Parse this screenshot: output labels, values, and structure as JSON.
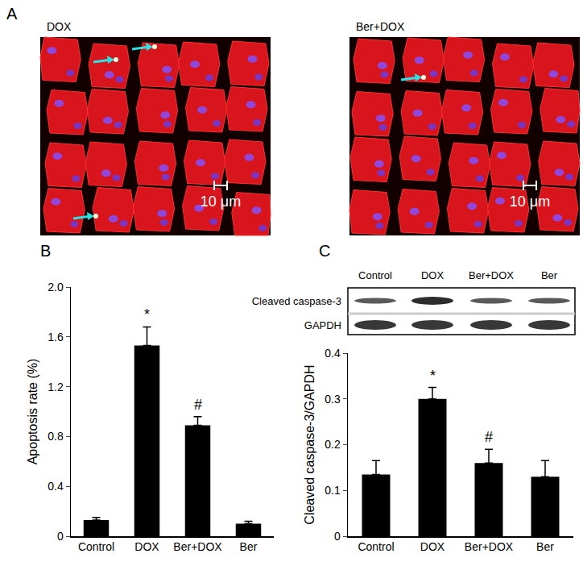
{
  "panel_labels": [
    "A",
    "B",
    "C"
  ],
  "images": [
    {
      "label": "DOX",
      "scale_bar": "10 μm"
    },
    {
      "label": "Ber+DOX",
      "scale_bar": "10 μm"
    }
  ],
  "blot": {
    "lanes": [
      "Control",
      "DOX",
      "Ber+DOX",
      "Ber"
    ],
    "rows": [
      "Cleaved caspase-3",
      "GAPDH"
    ]
  },
  "chart_data": [
    {
      "type": "bar",
      "y_label": "Apoptosis rate (%)",
      "categories": [
        "Control",
        "DOX",
        "Ber+DOX",
        "Ber"
      ],
      "values": [
        0.13,
        1.53,
        0.89,
        0.1
      ],
      "errors": [
        0.02,
        0.15,
        0.07,
        0.02
      ],
      "annotations": [
        {
          "category": "DOX",
          "text": "*"
        },
        {
          "category": "Ber+DOX",
          "text": "#"
        }
      ],
      "color": "#000000",
      "ylim": [
        0,
        2
      ],
      "yticks": [
        0,
        0.4,
        0.8,
        1.2,
        1.6,
        {
          "value": 2,
          "label": "2.0"
        }
      ],
      "grid": false
    },
    {
      "type": "bar",
      "y_label": "Cleaved caspase-3/GAPDH",
      "categories": [
        "Control",
        "DOX",
        "Ber+DOX",
        "Ber"
      ],
      "values": [
        0.135,
        0.3,
        0.16,
        0.13
      ],
      "errors": [
        0.03,
        0.025,
        0.03,
        0.035
      ],
      "annotations": [
        {
          "category": "DOX",
          "text": "*"
        },
        {
          "category": "Ber+DOX",
          "text": "#"
        }
      ],
      "color": "#000000",
      "ylim": [
        0,
        0.4
      ],
      "yticks": [
        0,
        0.1,
        0.2,
        0.3,
        0.4
      ],
      "grid": false
    }
  ]
}
